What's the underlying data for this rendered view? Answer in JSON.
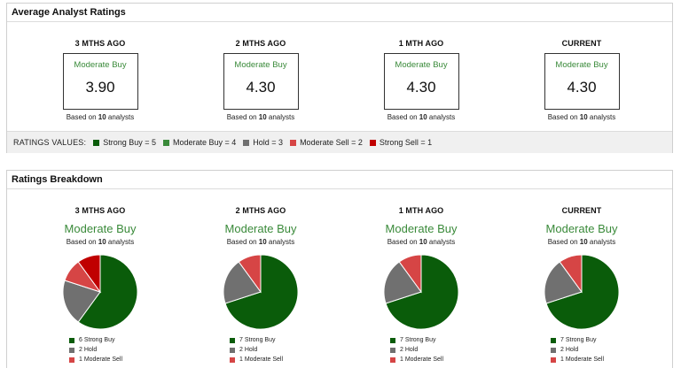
{
  "colors": {
    "strong_buy": "#0a5c0a",
    "moderate_buy": "#3a8a3a",
    "hold": "#707070",
    "moderate_sell": "#d64545",
    "strong_sell": "#c00000"
  },
  "average": {
    "title": "Average Analyst Ratings",
    "columns": [
      {
        "period": "3 MTHS AGO",
        "label": "Moderate Buy",
        "score": "3.90",
        "based_prefix": "Based on",
        "analysts": "10",
        "based_suffix": "analysts"
      },
      {
        "period": "2 MTHS AGO",
        "label": "Moderate Buy",
        "score": "4.30",
        "based_prefix": "Based on",
        "analysts": "10",
        "based_suffix": "analysts"
      },
      {
        "period": "1 MTH AGO",
        "label": "Moderate Buy",
        "score": "4.30",
        "based_prefix": "Based on",
        "analysts": "10",
        "based_suffix": "analysts"
      },
      {
        "period": "CURRENT",
        "label": "Moderate Buy",
        "score": "4.30",
        "based_prefix": "Based on",
        "analysts": "10",
        "based_suffix": "analysts"
      }
    ],
    "legend": {
      "title": "RATINGS VALUES:",
      "items": [
        {
          "label": "Strong Buy = 5",
          "color_key": "strong_buy"
        },
        {
          "label": "Moderate Buy = 4",
          "color_key": "moderate_buy"
        },
        {
          "label": "Hold = 3",
          "color_key": "hold"
        },
        {
          "label": "Moderate Sell = 2",
          "color_key": "moderate_sell"
        },
        {
          "label": "Strong Sell = 1",
          "color_key": "strong_sell"
        }
      ]
    }
  },
  "breakdown": {
    "title": "Ratings Breakdown",
    "columns": [
      {
        "period": "3 MTHS AGO",
        "label": "Moderate Buy",
        "based_prefix": "Based on",
        "analysts": "10",
        "based_suffix": "analysts",
        "slices": [
          {
            "label": "6 Strong Buy",
            "value": 6,
            "color_key": "strong_buy"
          },
          {
            "label": "2 Hold",
            "value": 2,
            "color_key": "hold"
          },
          {
            "label": "1 Moderate Sell",
            "value": 1,
            "color_key": "moderate_sell"
          },
          {
            "label": "",
            "value": 1,
            "color_key": "strong_sell"
          }
        ]
      },
      {
        "period": "2 MTHS AGO",
        "label": "Moderate Buy",
        "based_prefix": "Based on",
        "analysts": "10",
        "based_suffix": "analysts",
        "slices": [
          {
            "label": "7 Strong Buy",
            "value": 7,
            "color_key": "strong_buy"
          },
          {
            "label": "2 Hold",
            "value": 2,
            "color_key": "hold"
          },
          {
            "label": "1 Moderate Sell",
            "value": 1,
            "color_key": "moderate_sell"
          }
        ]
      },
      {
        "period": "1 MTH AGO",
        "label": "Moderate Buy",
        "based_prefix": "Based on",
        "analysts": "10",
        "based_suffix": "analysts",
        "slices": [
          {
            "label": "7 Strong Buy",
            "value": 7,
            "color_key": "strong_buy"
          },
          {
            "label": "2 Hold",
            "value": 2,
            "color_key": "hold"
          },
          {
            "label": "1 Moderate Sell",
            "value": 1,
            "color_key": "moderate_sell"
          }
        ]
      },
      {
        "period": "CURRENT",
        "label": "Moderate Buy",
        "based_prefix": "Based on",
        "analysts": "10",
        "based_suffix": "analysts",
        "slices": [
          {
            "label": "7 Strong Buy",
            "value": 7,
            "color_key": "strong_buy"
          },
          {
            "label": "2 Hold",
            "value": 2,
            "color_key": "hold"
          },
          {
            "label": "1 Moderate Sell",
            "value": 1,
            "color_key": "moderate_sell"
          }
        ]
      }
    ]
  }
}
